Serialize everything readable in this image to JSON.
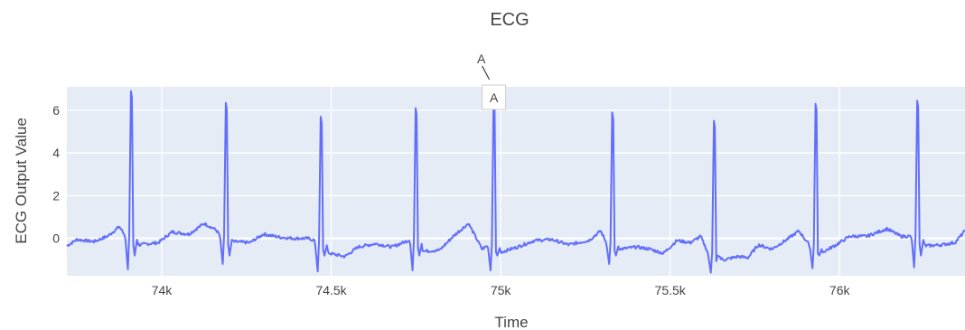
{
  "chart_data": {
    "type": "line",
    "title": "ECG",
    "xlabel": "Time",
    "ylabel": "ECG Output Value",
    "xlim": [
      73720,
      76370
    ],
    "ylim": [
      -1.75,
      7.1
    ],
    "x_ticks": [
      74000,
      74500,
      75000,
      75500,
      76000
    ],
    "x_tick_labels": [
      "74k",
      "74.5k",
      "75k",
      "75.5k",
      "76k"
    ],
    "y_ticks": [
      0,
      2,
      4,
      6
    ],
    "y_tick_labels": [
      "0",
      "2",
      "4",
      "6"
    ],
    "grid": true,
    "line_color": "#636efa",
    "plot_bg": "#e5ecf6",
    "r_peaks": [
      {
        "x": 73910,
        "peak": 6.9,
        "trough": -1.45
      },
      {
        "x": 74190,
        "peak": 6.35,
        "trough": -1.2
      },
      {
        "x": 74470,
        "peak": 5.7,
        "trough": -1.55
      },
      {
        "x": 74750,
        "peak": 6.1,
        "trough": -1.5
      },
      {
        "x": 74980,
        "peak": 6.3,
        "trough": -1.5
      },
      {
        "x": 75330,
        "peak": 5.9,
        "trough": -1.2
      },
      {
        "x": 75630,
        "peak": 5.5,
        "trough": -1.6
      },
      {
        "x": 75930,
        "peak": 6.3,
        "trough": -1.4
      },
      {
        "x": 76230,
        "peak": 6.45,
        "trough": -1.35
      }
    ],
    "baseline": [
      [
        73720,
        -0.35
      ],
      [
        73750,
        -0.05
      ],
      [
        73800,
        -0.15
      ],
      [
        73840,
        0.1
      ],
      [
        73875,
        0.55
      ],
      [
        73893,
        0.1
      ],
      [
        73935,
        -0.3
      ],
      [
        73990,
        -0.2
      ],
      [
        74030,
        0.3
      ],
      [
        74080,
        0.2
      ],
      [
        74125,
        0.7
      ],
      [
        74160,
        0.4
      ],
      [
        74178,
        0.0
      ],
      [
        74210,
        -0.15
      ],
      [
        74260,
        -0.2
      ],
      [
        74300,
        0.2
      ],
      [
        74350,
        0.05
      ],
      [
        74390,
        0.0
      ],
      [
        74430,
        0.0
      ],
      [
        74455,
        -0.1
      ],
      [
        74495,
        -0.7
      ],
      [
        74540,
        -0.85
      ],
      [
        74580,
        -0.4
      ],
      [
        74630,
        -0.25
      ],
      [
        74680,
        -0.4
      ],
      [
        74735,
        -0.05
      ],
      [
        74775,
        -0.6
      ],
      [
        74820,
        -0.55
      ],
      [
        74860,
        0.1
      ],
      [
        74905,
        0.7
      ],
      [
        74945,
        -0.5
      ],
      [
        74965,
        -0.3
      ],
      [
        75000,
        -0.65
      ],
      [
        75050,
        -0.4
      ],
      [
        75100,
        -0.1
      ],
      [
        75150,
        -0.05
      ],
      [
        75200,
        -0.3
      ],
      [
        75260,
        -0.1
      ],
      [
        75295,
        0.35
      ],
      [
        75315,
        -0.3
      ],
      [
        75355,
        -0.5
      ],
      [
        75400,
        -0.4
      ],
      [
        75440,
        -0.5
      ],
      [
        75480,
        -0.7
      ],
      [
        75520,
        -0.1
      ],
      [
        75560,
        -0.2
      ],
      [
        75590,
        0.1
      ],
      [
        75615,
        -0.8
      ],
      [
        75660,
        -1.0
      ],
      [
        75700,
        -0.85
      ],
      [
        75730,
        -0.9
      ],
      [
        75760,
        -0.3
      ],
      [
        75800,
        -0.5
      ],
      [
        75840,
        -0.1
      ],
      [
        75880,
        0.35
      ],
      [
        75915,
        -0.4
      ],
      [
        75950,
        -0.65
      ],
      [
        75990,
        -0.3
      ],
      [
        76030,
        0.1
      ],
      [
        76080,
        0.1
      ],
      [
        76140,
        0.45
      ],
      [
        76180,
        0.1
      ],
      [
        76215,
        0.1
      ],
      [
        76255,
        -0.35
      ],
      [
        76300,
        -0.3
      ],
      [
        76340,
        -0.2
      ],
      [
        76370,
        0.35
      ]
    ],
    "annotation": {
      "text": "A",
      "x": 74980,
      "y": 6.3
    },
    "hover_label": {
      "text": "A",
      "x": 74980,
      "y": 6.3
    }
  }
}
